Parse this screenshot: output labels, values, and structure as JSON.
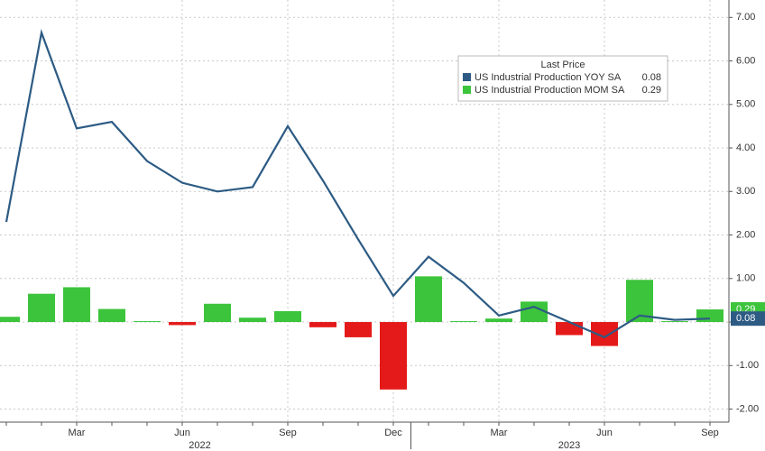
{
  "chart_data": {
    "type": "line-bar",
    "categories": [
      null,
      null,
      "Mar",
      null,
      null,
      "Jun",
      null,
      null,
      "Sep",
      null,
      null,
      "Dec",
      null,
      null,
      "Mar",
      null,
      null,
      "Jun",
      null,
      null,
      "Sep"
    ],
    "years": [
      "2022",
      "2023"
    ],
    "ylim": [
      -2.3,
      7.4
    ],
    "yticks": [
      {
        "value": 7,
        "label": "7.00"
      },
      {
        "value": 6,
        "label": "6.00"
      },
      {
        "value": 5,
        "label": "5.00"
      },
      {
        "value": 4,
        "label": "4.00"
      },
      {
        "value": 3,
        "label": "3.00"
      },
      {
        "value": 2,
        "label": "2.00"
      },
      {
        "value": 1,
        "label": "1.00"
      },
      {
        "value": 0,
        "label": "0.00"
      },
      {
        "value": -1,
        "label": "-1.00"
      },
      {
        "value": -2,
        "label": "-2.00"
      }
    ],
    "grid": true,
    "legend_title": "Last Price",
    "series": [
      {
        "name": "US Industrial Production YOY SA",
        "type": "line",
        "color": "#2d5b84",
        "last_value": 0.08,
        "values": [
          2.3,
          6.65,
          4.45,
          4.6,
          3.7,
          3.2,
          3.0,
          3.1,
          4.5,
          3.25,
          1.9,
          0.6,
          1.5,
          0.9,
          0.15,
          0.35,
          0.0,
          -0.35,
          0.15,
          0.05,
          0.08
        ]
      },
      {
        "name": "US Industrial Production MOM SA",
        "type": "bar",
        "color": "#3cc43c",
        "negative_color": "#e41a1a",
        "last_value": 0.29,
        "values": [
          0.12,
          0.65,
          0.8,
          0.3,
          0.02,
          -0.07,
          0.42,
          0.1,
          0.25,
          -0.12,
          -0.35,
          -1.55,
          1.05,
          0.02,
          0.08,
          0.47,
          -0.3,
          -0.55,
          0.97,
          0.02,
          0.29
        ]
      }
    ]
  }
}
